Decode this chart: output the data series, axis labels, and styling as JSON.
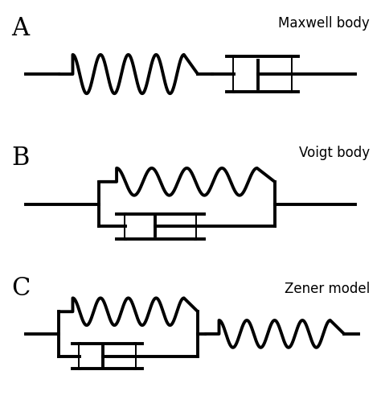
{
  "fig_width": 4.74,
  "fig_height": 5.07,
  "dpi": 100,
  "lw": 2.8,
  "color": "black",
  "label_fontsize": 22,
  "title_fontsize": 12,
  "titles": [
    "Maxwell body",
    "Voigt body",
    "Zener model"
  ],
  "bg_color": "white"
}
